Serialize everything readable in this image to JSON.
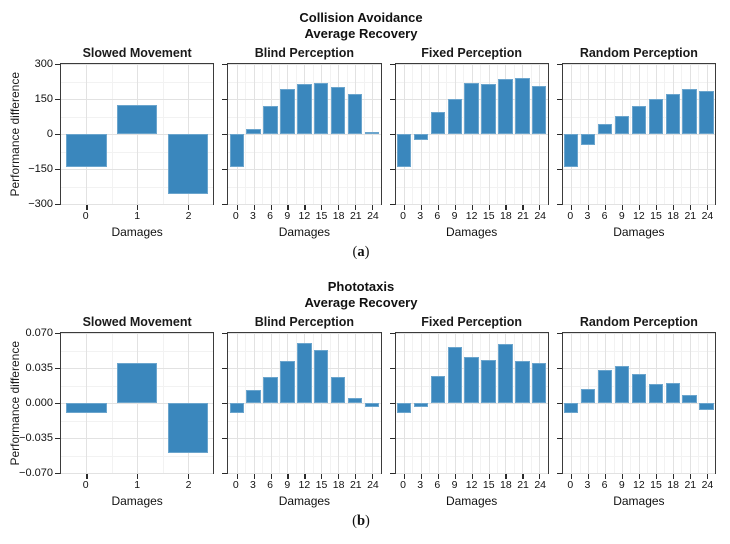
{
  "colors": {
    "bar_fill": "#3a87bd",
    "frame": "#3b3b3b",
    "grid_major": "#e2e2e2",
    "grid_minor": "#f2f2f2",
    "text": "#1a1a1a"
  },
  "chart_data": [
    {
      "type": "bar",
      "title_line1": "Collision Avoidance",
      "title_line2": "Average Recovery",
      "ylabel": "Performance difference",
      "xlabel": "Damages",
      "caption_open": "(",
      "caption_letter": "a",
      "caption_close": ")",
      "ylim": [
        -300,
        300
      ],
      "grid": true,
      "legend": "none",
      "yticks": [
        {
          "v": 300,
          "label": "300"
        },
        {
          "v": 150,
          "label": "150"
        },
        {
          "v": 0,
          "label": "0"
        },
        {
          "v": -150,
          "label": "−150"
        },
        {
          "v": -300,
          "label": "−300"
        }
      ],
      "subplots": [
        {
          "name": "Slowed Movement",
          "categories": [
            "0",
            "1",
            "2"
          ],
          "values": [
            -140,
            125,
            -255
          ]
        },
        {
          "name": "Blind Perception",
          "categories": [
            "0",
            "3",
            "6",
            "9",
            "12",
            "15",
            "18",
            "21",
            "24"
          ],
          "values": [
            -140,
            20,
            120,
            192,
            215,
            218,
            200,
            172,
            8
          ]
        },
        {
          "name": "Fixed Perception",
          "categories": [
            "0",
            "3",
            "6",
            "9",
            "12",
            "15",
            "18",
            "21",
            "24"
          ],
          "values": [
            -140,
            -25,
            95,
            150,
            218,
            215,
            235,
            240,
            207
          ]
        },
        {
          "name": "Random Perception",
          "categories": [
            "0",
            "3",
            "6",
            "9",
            "12",
            "15",
            "18",
            "21",
            "24"
          ],
          "values": [
            -140,
            -45,
            45,
            78,
            118,
            150,
            170,
            193,
            183
          ]
        }
      ]
    },
    {
      "type": "bar",
      "title_line1": "Phototaxis",
      "title_line2": "Average Recovery",
      "ylabel": "Performance difference",
      "xlabel": "Damages",
      "caption_open": "(",
      "caption_letter": "b",
      "caption_close": ")",
      "ylim": [
        -0.07,
        0.07
      ],
      "grid": true,
      "legend": "none",
      "yticks": [
        {
          "v": 0.07,
          "label": "0.070"
        },
        {
          "v": 0.035,
          "label": "0.035"
        },
        {
          "v": 0.0,
          "label": "0.000"
        },
        {
          "v": -0.035,
          "label": "−0.035"
        },
        {
          "v": -0.07,
          "label": "−0.070"
        }
      ],
      "subplots": [
        {
          "name": "Slowed Movement",
          "categories": [
            "0",
            "1",
            "2"
          ],
          "values": [
            -0.01,
            0.04,
            -0.05
          ]
        },
        {
          "name": "Blind Perception",
          "categories": [
            "0",
            "3",
            "6",
            "9",
            "12",
            "15",
            "18",
            "21",
            "24"
          ],
          "values": [
            -0.01,
            0.013,
            0.026,
            0.042,
            0.06,
            0.053,
            0.026,
            0.005,
            -0.004
          ]
        },
        {
          "name": "Fixed Perception",
          "categories": [
            "0",
            "3",
            "6",
            "9",
            "12",
            "15",
            "18",
            "21",
            "24"
          ],
          "values": [
            -0.01,
            -0.004,
            0.027,
            0.056,
            0.046,
            0.043,
            0.059,
            0.042,
            0.04
          ]
        },
        {
          "name": "Random Perception",
          "categories": [
            "0",
            "3",
            "6",
            "9",
            "12",
            "15",
            "18",
            "21",
            "24"
          ],
          "values": [
            -0.01,
            0.014,
            0.033,
            0.037,
            0.029,
            0.019,
            0.02,
            0.008,
            -0.007
          ]
        }
      ]
    }
  ]
}
